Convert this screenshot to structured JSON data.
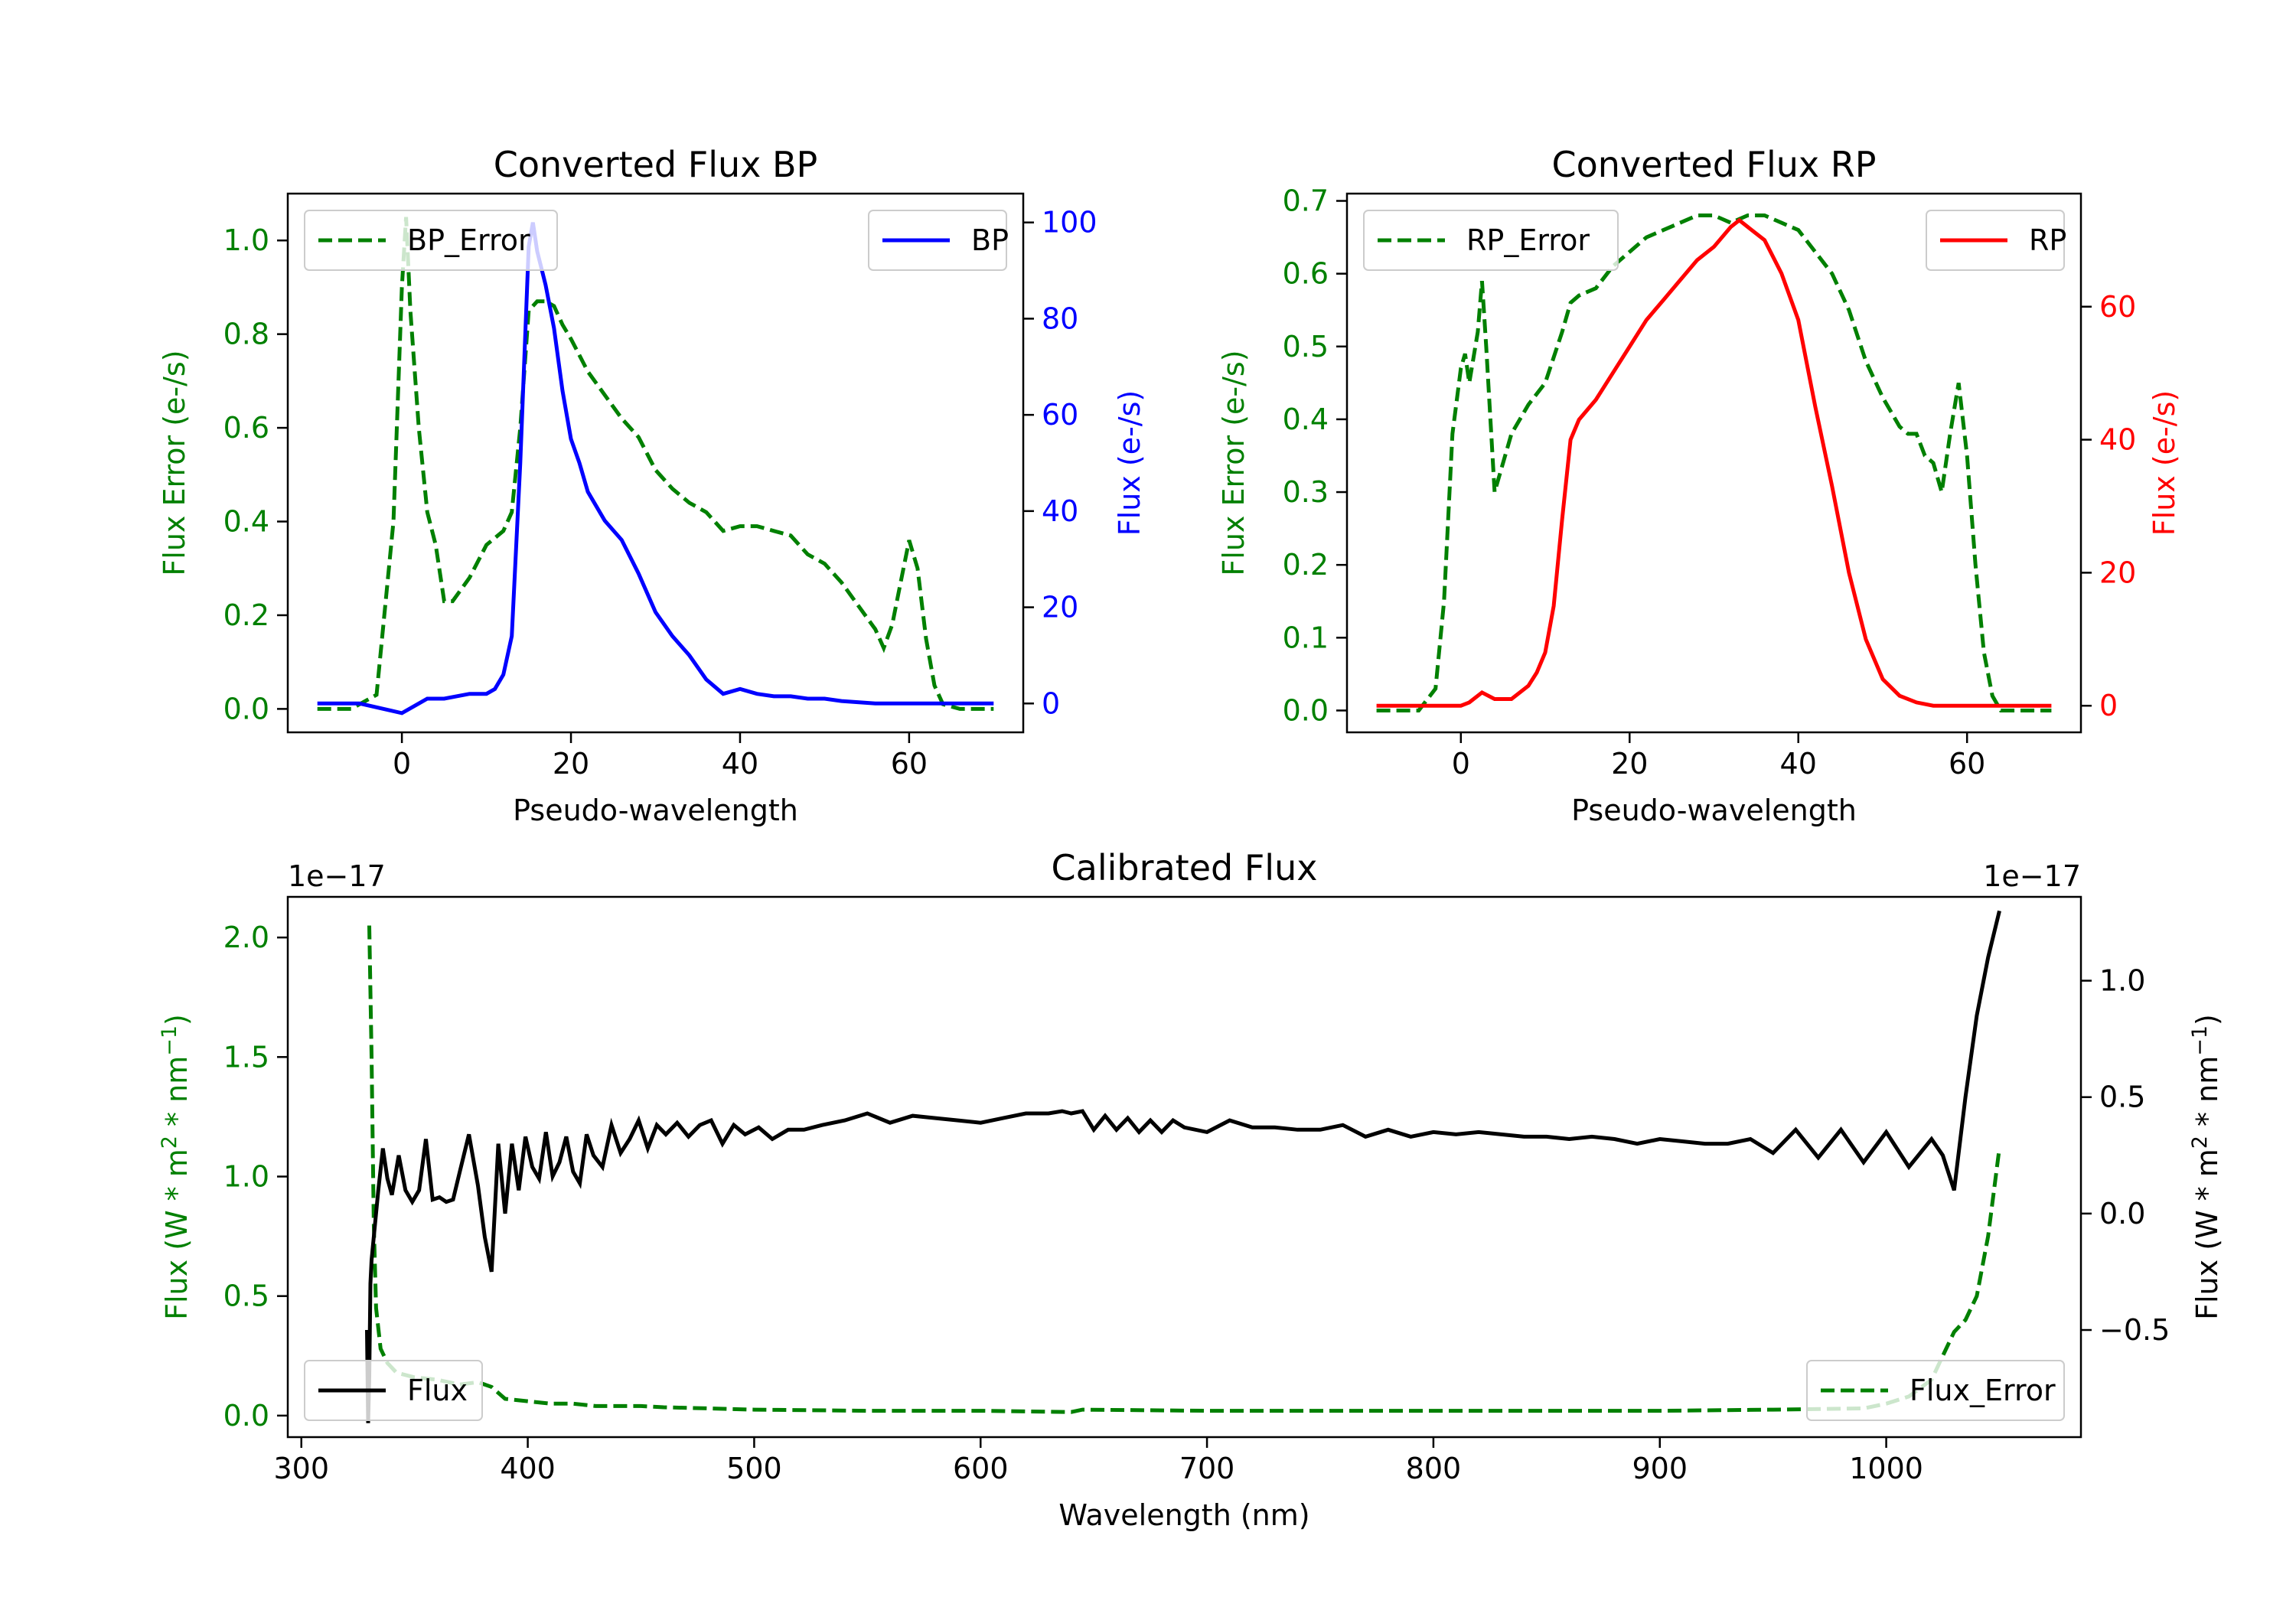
{
  "colors": {
    "bp": "#0000ff",
    "rp": "#ff0000",
    "error": "#008000",
    "flux": "#000000",
    "axis": "#000000"
  },
  "chart_data": [
    {
      "id": "bp",
      "type": "line",
      "title": "Converted Flux BP",
      "xlabel": "Pseudo-wavelength",
      "ylabel_left": "Flux Error (e-/s)",
      "ylabel_right": "Flux (e-/s)",
      "xlim": [
        -13.5,
        73.5
      ],
      "xticks": [
        0,
        20,
        40,
        60
      ],
      "ylim_left": [
        -0.05,
        1.1
      ],
      "yticks_left": [
        0.0,
        0.2,
        0.4,
        0.6,
        0.8,
        1.0
      ],
      "ytick_labels_left": [
        "0.0",
        "0.2",
        "0.4",
        "0.6",
        "0.8",
        "1.0"
      ],
      "ylim_right": [
        -6,
        106
      ],
      "yticks_right": [
        0,
        20,
        40,
        60,
        80,
        100
      ],
      "ytick_labels_right": [
        "0",
        "20",
        "40",
        "60",
        "80",
        "100"
      ],
      "legend_left": "BP_Error",
      "legend_right": "BP",
      "series_error": {
        "name": "BP_Error",
        "x": [
          -10,
          -6,
          -3,
          -1,
          0,
          0.5,
          1,
          2,
          3,
          4,
          5,
          6,
          8,
          10,
          12,
          13,
          14,
          15,
          16,
          17,
          18,
          19,
          20,
          22,
          24,
          26,
          28,
          30,
          32,
          34,
          36,
          38,
          40,
          42,
          44,
          46,
          48,
          50,
          52,
          54,
          56,
          57,
          58,
          59,
          60,
          61,
          62,
          63,
          64,
          66,
          70
        ],
        "y": [
          0.0,
          0.0,
          0.03,
          0.4,
          0.9,
          1.05,
          0.85,
          0.6,
          0.42,
          0.35,
          0.23,
          0.23,
          0.28,
          0.35,
          0.38,
          0.42,
          0.6,
          0.85,
          0.87,
          0.87,
          0.86,
          0.82,
          0.79,
          0.72,
          0.67,
          0.62,
          0.58,
          0.51,
          0.47,
          0.44,
          0.42,
          0.38,
          0.39,
          0.39,
          0.38,
          0.37,
          0.33,
          0.31,
          0.27,
          0.22,
          0.17,
          0.13,
          0.18,
          0.27,
          0.36,
          0.3,
          0.15,
          0.05,
          0.01,
          0.0,
          0.0
        ]
      },
      "series_flux": {
        "name": "BP",
        "x": [
          -10,
          -5,
          0,
          2,
          3,
          5,
          8,
          10,
          11,
          12,
          13,
          14,
          15,
          15.5,
          16,
          17,
          18,
          19,
          20,
          21,
          22,
          24,
          26,
          28,
          30,
          32,
          34,
          36,
          38,
          40,
          42,
          44,
          46,
          48,
          50,
          52,
          56,
          60,
          64,
          70
        ],
        "y": [
          0,
          0,
          -2,
          0,
          1,
          1,
          2,
          2,
          3,
          6,
          14,
          50,
          95,
          100,
          94,
          87,
          78,
          65,
          55,
          50,
          44,
          38,
          34,
          27,
          19,
          14,
          10,
          5,
          2,
          3,
          2,
          1.5,
          1.5,
          1,
          1,
          0.5,
          0,
          0,
          0,
          0
        ]
      }
    },
    {
      "id": "rp",
      "type": "line",
      "title": "Converted Flux RP",
      "xlabel": "Pseudo-wavelength",
      "ylabel_left": "Flux Error (e-/s)",
      "ylabel_right": "Flux (e-/s)",
      "xlim": [
        -13.5,
        73.5
      ],
      "xticks": [
        0,
        20,
        40,
        60
      ],
      "ylim_left": [
        -0.03,
        0.71
      ],
      "yticks_left": [
        0.0,
        0.1,
        0.2,
        0.3,
        0.4,
        0.5,
        0.6,
        0.7
      ],
      "ytick_labels_left": [
        "0.0",
        "0.1",
        "0.2",
        "0.3",
        "0.4",
        "0.5",
        "0.6",
        "0.7"
      ],
      "ylim_right": [
        -4,
        77
      ],
      "yticks_right": [
        0,
        20,
        40,
        60
      ],
      "ytick_labels_right": [
        "0",
        "20",
        "40",
        "60"
      ],
      "legend_left": "RP_Error",
      "legend_right": "RP",
      "series_error": {
        "name": "RP_Error",
        "x": [
          -10,
          -5,
          -3,
          -2,
          -1,
          0,
          0.5,
          1,
          2,
          2.5,
          3,
          4,
          5,
          6,
          8,
          10,
          12,
          13,
          14,
          16,
          18,
          20,
          22,
          24,
          26,
          28,
          30,
          32,
          34,
          36,
          38,
          40,
          42,
          44,
          46,
          48,
          50,
          52,
          53,
          54,
          55,
          56,
          57,
          58,
          59,
          60,
          61,
          62,
          63,
          64,
          66,
          70
        ],
        "y": [
          0.0,
          0.0,
          0.03,
          0.15,
          0.38,
          0.47,
          0.49,
          0.45,
          0.52,
          0.59,
          0.5,
          0.3,
          0.34,
          0.38,
          0.42,
          0.45,
          0.52,
          0.56,
          0.57,
          0.58,
          0.61,
          0.63,
          0.65,
          0.66,
          0.67,
          0.68,
          0.68,
          0.67,
          0.68,
          0.68,
          0.67,
          0.66,
          0.63,
          0.6,
          0.55,
          0.48,
          0.43,
          0.39,
          0.38,
          0.38,
          0.35,
          0.34,
          0.3,
          0.38,
          0.45,
          0.35,
          0.2,
          0.08,
          0.02,
          0.0,
          0.0,
          0.0
        ]
      },
      "series_flux": {
        "name": "RP",
        "x": [
          -10,
          -5,
          -2,
          0,
          1,
          2.5,
          4,
          6,
          8,
          9,
          10,
          11,
          12,
          13,
          14,
          16,
          18,
          20,
          22,
          24,
          26,
          28,
          30,
          32,
          33,
          34,
          36,
          38,
          40,
          42,
          44,
          46,
          48,
          50,
          52,
          54,
          56,
          58,
          60,
          65,
          70
        ],
        "y": [
          0,
          0,
          0,
          0,
          0.5,
          2,
          1,
          1,
          3,
          5,
          8,
          15,
          28,
          40,
          43,
          46,
          50,
          54,
          58,
          61,
          64,
          67,
          69,
          72,
          73,
          72,
          70,
          65,
          58,
          45,
          33,
          20,
          10,
          4,
          1.5,
          0.5,
          0,
          0,
          0,
          0,
          0
        ]
      }
    },
    {
      "id": "calibrated",
      "type": "line",
      "title": "Calibrated Flux",
      "xlabel": "Wavelength (nm)",
      "ylabel_left_pre": "Flux (W * m",
      "ylabel_left_sup1": "2",
      "ylabel_left_mid": " * nm",
      "ylabel_left_sup2": "−1",
      "ylabel_left_post": ")",
      "ylabel_right_pre": "Flux (W * m",
      "ylabel_right_sup1": "2",
      "ylabel_right_mid": " * nm",
      "ylabel_right_sup2": "−1",
      "ylabel_right_post": ")",
      "offset_left": "1e−17",
      "offset_right": "1e−17",
      "xlim": [
        294,
        1086
      ],
      "xticks": [
        300,
        400,
        500,
        600,
        700,
        800,
        900,
        1000
      ],
      "ylim_left": [
        -0.09,
        2.17
      ],
      "yticks_left": [
        0.0,
        0.5,
        1.0,
        1.5,
        2.0
      ],
      "ytick_labels_left": [
        "0.0",
        "0.5",
        "1.0",
        "1.5",
        "2.0"
      ],
      "ylim_right": [
        -0.96,
        1.36
      ],
      "yticks_right": [
        -0.5,
        0.0,
        0.5,
        1.0
      ],
      "ytick_labels_right": [
        "−0.5",
        "0.0",
        "0.5",
        "1.0"
      ],
      "legend_left": "Flux",
      "legend_right": "Flux_Error",
      "series_error": {
        "name": "Flux_Error",
        "x": [
          330,
          331,
          332,
          333,
          335,
          338,
          342,
          350,
          360,
          370,
          378,
          384,
          390,
          400,
          410,
          420,
          430,
          440,
          450,
          460,
          480,
          500,
          550,
          600,
          640,
          645,
          700,
          750,
          800,
          850,
          900,
          950,
          990,
          1000,
          1010,
          1020,
          1025,
          1030,
          1035,
          1040,
          1045,
          1050
        ],
        "y": [
          2.05,
          1.5,
          0.8,
          0.45,
          0.28,
          0.22,
          0.18,
          0.16,
          0.15,
          0.13,
          0.14,
          0.12,
          0.07,
          0.06,
          0.05,
          0.05,
          0.04,
          0.04,
          0.04,
          0.035,
          0.03,
          0.025,
          0.02,
          0.02,
          0.015,
          0.025,
          0.02,
          0.02,
          0.02,
          0.02,
          0.02,
          0.025,
          0.03,
          0.05,
          0.08,
          0.15,
          0.25,
          0.35,
          0.4,
          0.5,
          0.75,
          1.12
        ]
      },
      "series_flux": {
        "name": "Flux",
        "x": [
          329,
          329.5,
          330,
          330.5,
          331,
          332,
          334,
          336,
          338,
          340,
          343,
          346,
          349,
          352,
          355,
          358,
          361,
          364,
          367,
          370,
          374,
          378,
          381,
          384,
          387,
          390,
          393,
          396,
          399,
          402,
          405,
          408,
          411,
          414,
          417,
          420,
          423,
          426,
          429,
          433,
          437,
          441,
          445,
          449,
          453,
          457,
          461,
          466,
          471,
          476,
          481,
          486,
          491,
          496,
          502,
          508,
          515,
          522,
          530,
          540,
          550,
          560,
          570,
          580,
          590,
          600,
          610,
          620,
          630,
          636,
          640,
          645,
          650,
          655,
          660,
          665,
          670,
          675,
          680,
          685,
          690,
          700,
          710,
          720,
          730,
          740,
          750,
          760,
          770,
          780,
          790,
          800,
          810,
          820,
          830,
          840,
          850,
          860,
          870,
          880,
          890,
          900,
          910,
          920,
          930,
          940,
          950,
          960,
          970,
          980,
          990,
          1000,
          1010,
          1020,
          1025,
          1030,
          1035,
          1040,
          1045,
          1050
        ],
        "y": [
          -0.5,
          -0.9,
          -0.7,
          -0.3,
          -0.2,
          -0.1,
          0.1,
          0.28,
          0.15,
          0.08,
          0.25,
          0.1,
          0.05,
          0.1,
          0.32,
          0.06,
          0.07,
          0.05,
          0.06,
          0.18,
          0.34,
          0.12,
          -0.1,
          -0.25,
          0.3,
          0.0,
          0.3,
          0.1,
          0.33,
          0.2,
          0.15,
          0.35,
          0.16,
          0.22,
          0.33,
          0.18,
          0.13,
          0.34,
          0.25,
          0.2,
          0.38,
          0.26,
          0.32,
          0.4,
          0.28,
          0.38,
          0.34,
          0.39,
          0.33,
          0.38,
          0.4,
          0.3,
          0.38,
          0.34,
          0.37,
          0.32,
          0.36,
          0.36,
          0.38,
          0.4,
          0.43,
          0.39,
          0.42,
          0.41,
          0.4,
          0.39,
          0.41,
          0.43,
          0.43,
          0.44,
          0.43,
          0.44,
          0.36,
          0.42,
          0.36,
          0.41,
          0.35,
          0.4,
          0.35,
          0.4,
          0.37,
          0.35,
          0.4,
          0.37,
          0.37,
          0.36,
          0.36,
          0.38,
          0.33,
          0.36,
          0.33,
          0.35,
          0.34,
          0.35,
          0.34,
          0.33,
          0.33,
          0.32,
          0.33,
          0.32,
          0.3,
          0.32,
          0.31,
          0.3,
          0.3,
          0.32,
          0.26,
          0.36,
          0.24,
          0.36,
          0.22,
          0.35,
          0.2,
          0.32,
          0.25,
          0.1,
          0.5,
          0.85,
          1.1,
          1.3
        ]
      }
    }
  ]
}
